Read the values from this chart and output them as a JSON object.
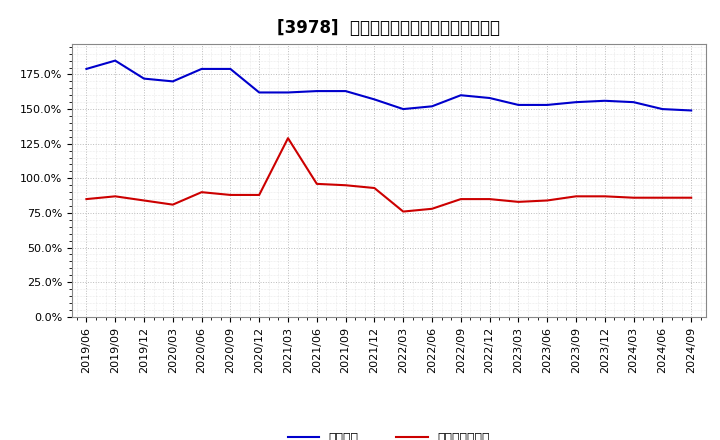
{
  "title": "[3978]  固定比率、固定長期適合率の推移",
  "fixed_ratio": {
    "label": "固定比率",
    "color": "#0000cc",
    "dates": [
      "2019/06",
      "2019/09",
      "2019/12",
      "2020/03",
      "2020/06",
      "2020/09",
      "2020/12",
      "2021/03",
      "2021/06",
      "2021/09",
      "2021/12",
      "2022/03",
      "2022/06",
      "2022/09",
      "2022/12",
      "2023/03",
      "2023/06",
      "2023/09",
      "2023/12",
      "2024/03",
      "2024/06",
      "2024/09"
    ],
    "values": [
      179,
      185,
      172,
      170,
      179,
      179,
      162,
      162,
      163,
      163,
      157,
      150,
      152,
      160,
      158,
      153,
      153,
      155,
      156,
      155,
      150,
      149
    ]
  },
  "fixed_long_ratio": {
    "label": "固定長期適合率",
    "color": "#cc0000",
    "dates": [
      "2019/06",
      "2019/09",
      "2019/12",
      "2020/03",
      "2020/06",
      "2020/09",
      "2020/12",
      "2021/03",
      "2021/06",
      "2021/09",
      "2021/12",
      "2022/03",
      "2022/06",
      "2022/09",
      "2022/12",
      "2023/03",
      "2023/06",
      "2023/09",
      "2023/12",
      "2024/03",
      "2024/06",
      "2024/09"
    ],
    "values": [
      85,
      87,
      84,
      81,
      90,
      88,
      88,
      129,
      96,
      95,
      93,
      76,
      78,
      85,
      85,
      83,
      84,
      87,
      87,
      86,
      86,
      86
    ]
  },
  "yticks": [
    0,
    25,
    50,
    75,
    100,
    125,
    150,
    175
  ],
  "ylim": [
    0,
    197
  ],
  "background_color": "#ffffff",
  "plot_bg_color": "#ffffff",
  "grid_color": "#aaaaaa",
  "title_fontsize": 12,
  "legend_fontsize": 9,
  "tick_fontsize": 8
}
